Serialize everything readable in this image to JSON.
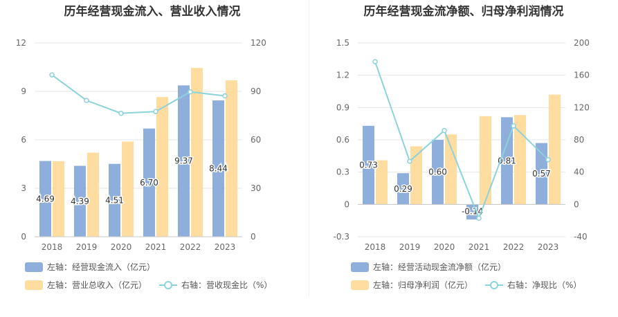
{
  "colors": {
    "bar_primary": "#8eaedc",
    "bar_secondary": "#ffdca0",
    "line": "#8bd3dc",
    "grid": "#e6e6e6",
    "axis_text": "#666666"
  },
  "chart_data": [
    {
      "type": "bar",
      "title": "历年经营现金流入、营业收入情况",
      "categories": [
        "2018",
        "2019",
        "2020",
        "2021",
        "2022",
        "2023"
      ],
      "left_axis": {
        "ylim": [
          0,
          12
        ],
        "ticks": [
          "0",
          "3",
          "6",
          "9",
          "12"
        ]
      },
      "right_axis": {
        "ylim": [
          0,
          120
        ],
        "ticks": [
          "0",
          "30",
          "60",
          "90",
          "120"
        ]
      },
      "series": [
        {
          "name": "左轴：经营现金流入（亿元）",
          "axis": "left",
          "kind": "bar",
          "values": [
            4.69,
            4.39,
            4.51,
            6.7,
            9.37,
            8.44
          ],
          "labels": [
            "4.69",
            "4.39",
            "4.51",
            "6.70",
            "9.37",
            "8.44"
          ]
        },
        {
          "name": "左轴：营业总收入（亿元）",
          "axis": "left",
          "kind": "bar",
          "values": [
            4.68,
            5.2,
            5.9,
            8.65,
            10.45,
            9.68
          ]
        },
        {
          "name": "右轴：营收现金比（%）",
          "axis": "right",
          "kind": "line",
          "values": [
            100.2,
            84.4,
            76.4,
            77.5,
            89.7,
            87.2
          ]
        }
      ],
      "legend_position": "bottom",
      "grid": true
    },
    {
      "type": "bar",
      "title": "历年经营现金流净额、归母净利润情况",
      "categories": [
        "2018",
        "2019",
        "2020",
        "2021",
        "2022",
        "2023"
      ],
      "left_axis": {
        "ylim": [
          -0.3,
          1.5
        ],
        "ticks": [
          "-0.3",
          "0",
          "0.3",
          "0.6",
          "0.9",
          "1.2",
          "1.5"
        ]
      },
      "right_axis": {
        "ylim": [
          -40,
          200
        ],
        "ticks": [
          "-40",
          "0",
          "40",
          "80",
          "120",
          "160",
          "200"
        ]
      },
      "series": [
        {
          "name": "左轴：经营活动现金流净额（亿元）",
          "axis": "left",
          "kind": "bar",
          "values": [
            0.73,
            0.29,
            0.6,
            -0.14,
            0.81,
            0.57
          ],
          "labels": [
            "0.73",
            "0.29",
            "0.60",
            "-0.14",
            "0.81",
            "0.57"
          ]
        },
        {
          "name": "左轴：归母净利润（亿元）",
          "axis": "left",
          "kind": "bar",
          "values": [
            0.41,
            0.54,
            0.65,
            0.82,
            0.83,
            1.02
          ]
        },
        {
          "name": "右轴：净现比（%）",
          "axis": "right",
          "kind": "line",
          "values": [
            176.8,
            53.5,
            91.5,
            -17.1,
            97.3,
            55.4
          ]
        }
      ],
      "legend_position": "bottom",
      "grid": true
    }
  ]
}
